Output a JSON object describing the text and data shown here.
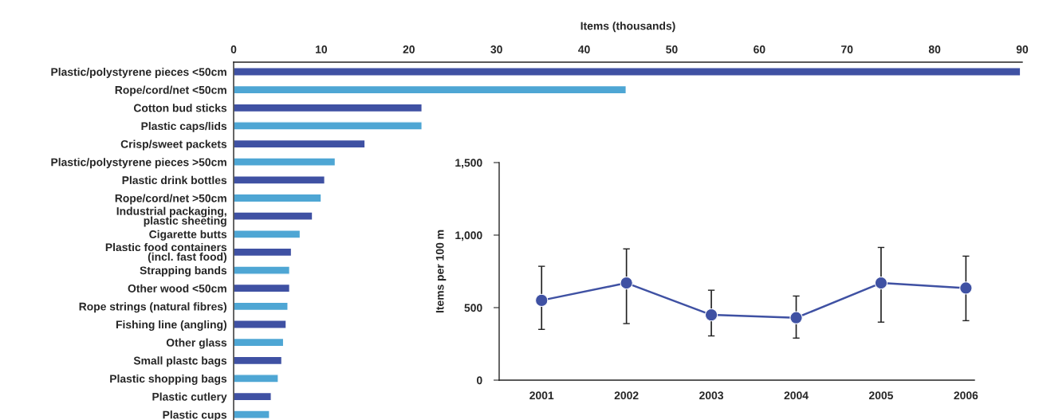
{
  "chart_data": [
    {
      "type": "bar",
      "orientation": "horizontal",
      "xlabel": "Items (thousands)",
      "xlim": [
        0,
        90
      ],
      "xticks": [
        0,
        10,
        20,
        30,
        40,
        50,
        60,
        70,
        80,
        90
      ],
      "grid": false,
      "categories": [
        "Plastic/polystyrene pieces <50cm",
        "Rope/cord/net <50cm",
        "Cotton bud sticks",
        "Plastic caps/lids",
        "Crisp/sweet packets",
        "Plastic/polystyrene pieces >50cm",
        "Plastic drink bottles",
        "Rope/cord/net >50cm",
        "Industrial packaging,\nplastic sheeting",
        "Cigarette butts",
        "Plastic food containers\n(incl. fast food)",
        "Strapping bands",
        "Other wood <50cm",
        "Rope strings (natural fibres)",
        "Fishing line (angling)",
        "Other glass",
        "Small plastc bags",
        "Plastic shopping bags",
        "Plastic cutlery",
        "Plastic cups"
      ],
      "values": [
        89.8,
        44.8,
        21.5,
        21.5,
        15.0,
        11.6,
        10.4,
        10.0,
        9.0,
        7.6,
        6.6,
        6.4,
        6.4,
        6.2,
        6.0,
        5.7,
        5.5,
        5.1,
        4.3,
        4.1
      ],
      "colors": [
        "#3f51a3",
        "#4ea6d4",
        "#3f51a3",
        "#4ea6d4",
        "#3f51a3",
        "#4ea6d4",
        "#3f51a3",
        "#4ea6d4",
        "#3f51a3",
        "#4ea6d4",
        "#3f51a3",
        "#4ea6d4",
        "#3f51a3",
        "#4ea6d4",
        "#3f51a3",
        "#4ea6d4",
        "#3f51a3",
        "#4ea6d4",
        "#3f51a3",
        "#4ea6d4"
      ]
    },
    {
      "type": "line",
      "ylabel": "Items per 100 m",
      "ylim": [
        0,
        1500
      ],
      "yticks": [
        0,
        {
          "value": 500,
          "label": "500"
        },
        {
          "value": 1000,
          "label": "1,000"
        },
        {
          "value": 1500,
          "label": "1,500"
        }
      ],
      "grid": false,
      "marker": "circle",
      "line_style": "solid",
      "categories": [
        "2001",
        "2002",
        "2003",
        "2004",
        "2005",
        "2006"
      ],
      "series": [
        {
          "color": "#3f51a3",
          "values": [
            550,
            670,
            450,
            430,
            670,
            635
          ],
          "errors": [
            [
              350,
              785
            ],
            [
              390,
              905
            ],
            [
              305,
              620
            ],
            [
              290,
              580
            ],
            [
              400,
              915
            ],
            [
              410,
              855
            ]
          ]
        }
      ]
    }
  ]
}
